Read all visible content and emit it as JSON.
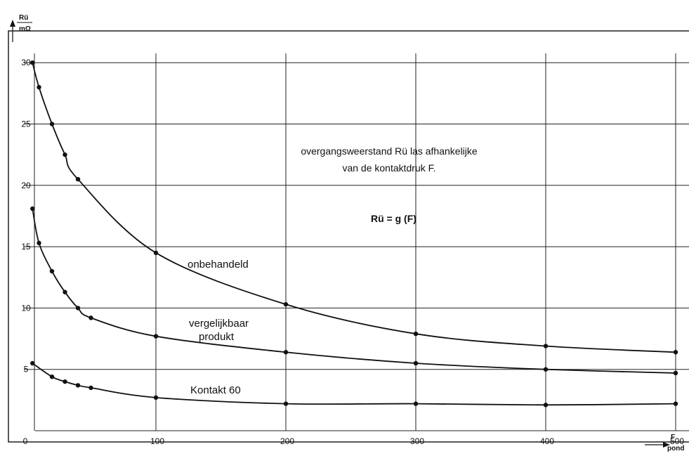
{
  "chart_data": {
    "type": "line",
    "ylabel": "Rü",
    "yunit": "mΩ",
    "xlabel": "F",
    "xunit": "pond",
    "xlim": [
      0,
      500
    ],
    "ylim": [
      0,
      30
    ],
    "x_ticks": [
      0,
      100,
      200,
      300,
      400,
      500
    ],
    "y_ticks": [
      5,
      10,
      15,
      20,
      25,
      30
    ],
    "grid": true,
    "annotation": {
      "line1": "overgangsweerstand Rü las afhankelijke",
      "line2": "van de kontaktdruk F."
    },
    "formula": "Rü = g (F)",
    "series": [
      {
        "name": "onbehandeld",
        "x": [
          5,
          10,
          20,
          30,
          40,
          100,
          200,
          300,
          400,
          500
        ],
        "y": [
          30,
          28,
          25,
          22.5,
          20.5,
          14.5,
          10.3,
          7.9,
          6.9,
          6.4
        ]
      },
      {
        "name": "vergelijkbaar produkt",
        "x": [
          5,
          10,
          20,
          30,
          40,
          50,
          100,
          200,
          300,
          400,
          500
        ],
        "y": [
          18.1,
          15.3,
          13,
          11.3,
          10,
          9.2,
          7.7,
          6.4,
          5.5,
          5,
          4.7
        ]
      },
      {
        "name": "Kontakt 60",
        "x": [
          5,
          20,
          30,
          40,
          50,
          100,
          200,
          300,
          400,
          500
        ],
        "y": [
          5.5,
          4.4,
          4,
          3.7,
          3.5,
          2.7,
          2.2,
          2.2,
          2.1,
          2.2
        ]
      }
    ],
    "series_label_lines": {
      "onbehandeld": [
        "onbehandeld"
      ],
      "vergelijkbaar produkt": [
        "vergelijkbaar",
        "produkt"
      ],
      "Kontakt 60": [
        "Kontakt 60"
      ]
    }
  }
}
